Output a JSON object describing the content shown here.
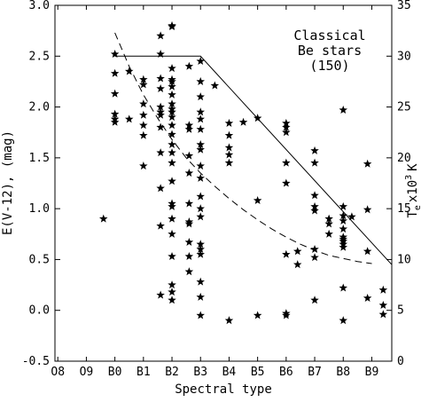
{
  "chart_data": {
    "type": "scatter",
    "title": "",
    "xlabel": "Spectral type",
    "ylabel": "E(V-12), (mag)",
    "y2label": "T",
    "y2label_sub": "e",
    "y2label_tail": "x10",
    "y2label_sup": "3",
    "y2label_unit": "K",
    "x_categories": [
      "O8",
      "O9",
      "B0",
      "B1",
      "B2",
      "B3",
      "B4",
      "B5",
      "B6",
      "B7",
      "B8",
      "B9"
    ],
    "x_range": [
      -0.1,
      11.7
    ],
    "ylim": [
      -0.5,
      3.0
    ],
    "y_ticks": [
      "3.0",
      "2.5",
      "2.0",
      "1.5",
      "1.0",
      "0.5",
      "0.0",
      "-0.5"
    ],
    "y_tick_values": [
      3.0,
      2.5,
      2.0,
      1.5,
      1.0,
      0.5,
      0.0,
      -0.5
    ],
    "y2lim": [
      0,
      35
    ],
    "y2_ticks": [
      "35",
      "30",
      "25",
      "20",
      "15",
      "10",
      "5",
      "0"
    ],
    "y2_tick_values": [
      35,
      30,
      25,
      20,
      15,
      10,
      5,
      0
    ],
    "annotation": [
      "Classical",
      "Be stars",
      "(150)"
    ],
    "marker": "star",
    "points": [
      [
        1.6,
        0.9
      ],
      [
        2.0,
        2.52
      ],
      [
        2.0,
        2.33
      ],
      [
        2.0,
        2.13
      ],
      [
        2.0,
        1.93
      ],
      [
        2.0,
        1.88
      ],
      [
        2.0,
        1.85
      ],
      [
        2.5,
        2.35
      ],
      [
        2.5,
        1.88
      ],
      [
        3.0,
        2.27
      ],
      [
        3.0,
        2.22
      ],
      [
        3.0,
        2.03
      ],
      [
        3.0,
        1.92
      ],
      [
        3.0,
        1.82
      ],
      [
        3.0,
        1.72
      ],
      [
        3.0,
        1.42
      ],
      [
        3.6,
        2.7
      ],
      [
        3.6,
        2.52
      ],
      [
        3.6,
        2.28
      ],
      [
        3.6,
        2.18
      ],
      [
        3.6,
        2.0
      ],
      [
        3.6,
        1.95
      ],
      [
        3.6,
        1.92
      ],
      [
        3.6,
        1.8
      ],
      [
        3.6,
        1.55
      ],
      [
        3.6,
        1.2
      ],
      [
        3.6,
        0.83
      ],
      [
        3.6,
        0.15
      ],
      [
        4.0,
        2.79
      ],
      [
        4.0,
        2.8
      ],
      [
        4.0,
        2.38
      ],
      [
        4.0,
        2.27
      ],
      [
        4.0,
        2.25
      ],
      [
        4.0,
        2.2
      ],
      [
        4.0,
        2.12
      ],
      [
        4.0,
        2.03
      ],
      [
        4.0,
        1.98
      ],
      [
        4.0,
        1.95
      ],
      [
        4.0,
        1.9
      ],
      [
        4.0,
        1.82
      ],
      [
        4.0,
        1.73
      ],
      [
        4.0,
        1.63
      ],
      [
        4.0,
        1.55
      ],
      [
        4.0,
        1.45
      ],
      [
        4.0,
        1.27
      ],
      [
        4.0,
        1.05
      ],
      [
        4.0,
        1.02
      ],
      [
        4.0,
        0.9
      ],
      [
        4.0,
        0.75
      ],
      [
        4.0,
        0.53
      ],
      [
        4.0,
        0.25
      ],
      [
        4.0,
        0.18
      ],
      [
        4.0,
        0.1
      ],
      [
        4.6,
        2.4
      ],
      [
        4.6,
        1.82
      ],
      [
        4.6,
        1.78
      ],
      [
        4.6,
        1.52
      ],
      [
        4.6,
        1.35
      ],
      [
        4.6,
        1.05
      ],
      [
        4.6,
        0.87
      ],
      [
        4.6,
        0.85
      ],
      [
        4.6,
        0.67
      ],
      [
        4.6,
        0.53
      ],
      [
        4.6,
        0.38
      ],
      [
        5.0,
        2.45
      ],
      [
        5.0,
        2.25
      ],
      [
        5.0,
        2.1
      ],
      [
        5.0,
        1.95
      ],
      [
        5.0,
        1.88
      ],
      [
        5.0,
        1.78
      ],
      [
        5.0,
        1.63
      ],
      [
        5.0,
        1.58
      ],
      [
        5.0,
        1.42
      ],
      [
        5.0,
        1.3
      ],
      [
        5.0,
        1.12
      ],
      [
        5.0,
        1.0
      ],
      [
        5.0,
        0.92
      ],
      [
        5.0,
        0.65
      ],
      [
        5.0,
        0.6
      ],
      [
        5.0,
        0.55
      ],
      [
        5.0,
        0.28
      ],
      [
        5.0,
        0.13
      ],
      [
        5.0,
        -0.05
      ],
      [
        5.5,
        2.21
      ],
      [
        6.0,
        1.84
      ],
      [
        6.0,
        1.72
      ],
      [
        6.0,
        1.6
      ],
      [
        6.0,
        1.53
      ],
      [
        6.0,
        1.45
      ],
      [
        6.0,
        -0.1
      ],
      [
        6.5,
        1.85
      ],
      [
        7.0,
        1.89
      ],
      [
        7.0,
        1.08
      ],
      [
        7.0,
        -0.05
      ],
      [
        8.0,
        1.84
      ],
      [
        8.0,
        1.8
      ],
      [
        8.0,
        1.75
      ],
      [
        8.0,
        1.45
      ],
      [
        8.0,
        1.25
      ],
      [
        8.0,
        0.55
      ],
      [
        8.0,
        -0.03
      ],
      [
        8.0,
        -0.05
      ],
      [
        8.4,
        0.58
      ],
      [
        8.4,
        0.45
      ],
      [
        9.0,
        1.57
      ],
      [
        9.0,
        1.45
      ],
      [
        9.0,
        1.13
      ],
      [
        9.0,
        1.02
      ],
      [
        9.0,
        0.98
      ],
      [
        9.0,
        0.6
      ],
      [
        9.0,
        0.52
      ],
      [
        9.0,
        0.1
      ],
      [
        9.5,
        0.9
      ],
      [
        9.5,
        0.85
      ],
      [
        9.5,
        0.75
      ],
      [
        10.0,
        1.97
      ],
      [
        10.0,
        1.02
      ],
      [
        10.0,
        0.93
      ],
      [
        10.0,
        0.88
      ],
      [
        10.0,
        0.8
      ],
      [
        10.0,
        0.72
      ],
      [
        10.0,
        0.7
      ],
      [
        10.0,
        0.68
      ],
      [
        10.0,
        0.65
      ],
      [
        10.0,
        0.62
      ],
      [
        10.0,
        0.22
      ],
      [
        10.0,
        -0.1
      ],
      [
        10.3,
        0.92
      ],
      [
        10.85,
        1.44
      ],
      [
        10.85,
        0.99
      ],
      [
        10.85,
        0.58
      ],
      [
        10.85,
        0.12
      ],
      [
        11.4,
        0.2
      ],
      [
        11.4,
        0.05
      ],
      [
        11.4,
        -0.04
      ]
    ],
    "solid_line_y2": [
      [
        2.0,
        30
      ],
      [
        5.0,
        30
      ],
      [
        11.7,
        9.5
      ]
    ],
    "dashed_line_y2": [
      [
        2.0,
        32.3
      ],
      [
        2.5,
        29.0
      ],
      [
        3.0,
        26.2
      ],
      [
        3.5,
        23.9
      ],
      [
        4.0,
        21.8
      ],
      [
        4.5,
        20.0
      ],
      [
        5.0,
        18.5
      ],
      [
        5.5,
        17.2
      ],
      [
        6.0,
        16.0
      ],
      [
        6.5,
        14.9
      ],
      [
        7.0,
        13.9
      ],
      [
        7.5,
        13.0
      ],
      [
        8.0,
        12.2
      ],
      [
        8.5,
        11.5
      ],
      [
        9.0,
        10.9
      ],
      [
        9.5,
        10.4
      ],
      [
        10.0,
        10.1
      ],
      [
        10.5,
        9.8
      ],
      [
        11.0,
        9.6
      ]
    ]
  }
}
